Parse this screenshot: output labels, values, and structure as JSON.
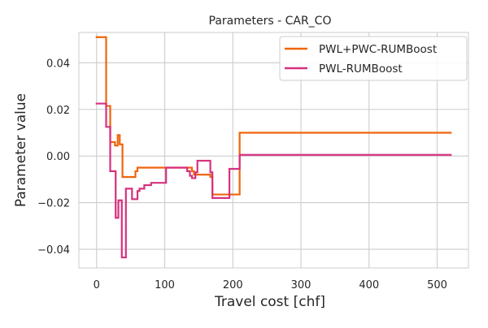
{
  "chart_data": {
    "type": "line",
    "step": true,
    "title": "Parameters - CAR_CO",
    "xlabel": "Travel cost [chf]",
    "ylabel": "Parameter value",
    "xlim": [
      -26,
      546
    ],
    "ylim": [
      -0.048,
      0.053
    ],
    "xticks": [
      0,
      100,
      200,
      300,
      400,
      500
    ],
    "yticks": [
      -0.04,
      -0.02,
      0.0,
      0.02,
      0.04
    ],
    "xtick_labels": [
      "0",
      "100",
      "200",
      "300",
      "400",
      "500"
    ],
    "ytick_labels": [
      "−0.04",
      "−0.02",
      "0.00",
      "0.02",
      "0.04"
    ],
    "grid": true,
    "legend_position": "top-right",
    "series": [
      {
        "name": "PWL+PWC-RUMBoost",
        "color": "#f0640a",
        "x": [
          0,
          14,
          14,
          20,
          20,
          27,
          27,
          31,
          31,
          34,
          34,
          38,
          38,
          57,
          57,
          60,
          60,
          140,
          140,
          143,
          143,
          167,
          167,
          170,
          170,
          210,
          210,
          520
        ],
        "y": [
          0.051,
          0.051,
          0.0215,
          0.0215,
          0.006,
          0.006,
          0.0045,
          0.0045,
          0.009,
          0.009,
          0.005,
          0.005,
          -0.009,
          -0.009,
          -0.0065,
          -0.0065,
          -0.005,
          -0.005,
          -0.0065,
          -0.0065,
          -0.008,
          -0.008,
          -0.009,
          -0.009,
          -0.0165,
          -0.0165,
          0.01,
          0.01
        ]
      },
      {
        "name": "PWL-RUMBoost",
        "color": "#d6307e",
        "x": [
          0,
          14,
          14,
          20,
          20,
          28,
          28,
          32,
          32,
          37,
          37,
          43,
          43,
          52,
          52,
          60,
          60,
          63,
          63,
          70,
          70,
          80,
          80,
          102,
          102,
          133,
          133,
          137,
          137,
          140,
          140,
          145,
          145,
          148,
          148,
          167,
          167,
          170,
          170,
          195,
          195,
          210,
          210,
          520
        ],
        "y": [
          0.0225,
          0.0225,
          0.0125,
          0.0125,
          -0.0065,
          -0.0065,
          -0.0265,
          -0.0265,
          -0.019,
          -0.019,
          -0.0435,
          -0.0435,
          -0.014,
          -0.014,
          -0.0185,
          -0.0185,
          -0.015,
          -0.015,
          -0.014,
          -0.014,
          -0.0125,
          -0.0125,
          -0.0115,
          -0.0115,
          -0.005,
          -0.005,
          -0.0065,
          -0.0065,
          -0.0085,
          -0.0085,
          -0.0095,
          -0.0095,
          -0.007,
          -0.007,
          -0.002,
          -0.002,
          -0.007,
          -0.007,
          -0.018,
          -0.018,
          -0.0055,
          -0.0055,
          0.0005,
          0.0005
        ]
      }
    ]
  }
}
